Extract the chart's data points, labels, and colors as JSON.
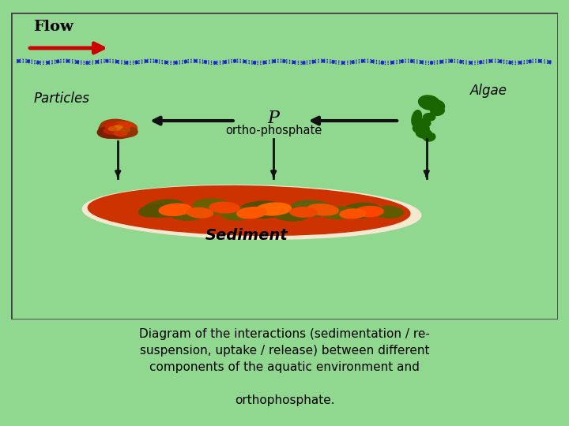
{
  "bg_color": "#90d890",
  "diagram_bg": "#90d890",
  "border_color": "#444444",
  "flow_text": "Flow",
  "flow_arrow_color": "#cc0000",
  "water_line_color": "#2222cc",
  "particles_text": "Particles",
  "algae_text": "Algae",
  "p_text": "P",
  "ortho_text": "ortho-phosphate",
  "sediment_text": "Sediment",
  "caption_line1": "Diagram of the interactions (sedimentation / re-",
  "caption_line2": "suspension, uptake / release) between different",
  "caption_line3": "components of the aquatic environment and",
  "caption_line4": "orthophosphate.",
  "arrow_color": "#111111",
  "text_color": "#000000",
  "figsize": [
    7.2,
    5.4
  ],
  "dpi": 100
}
